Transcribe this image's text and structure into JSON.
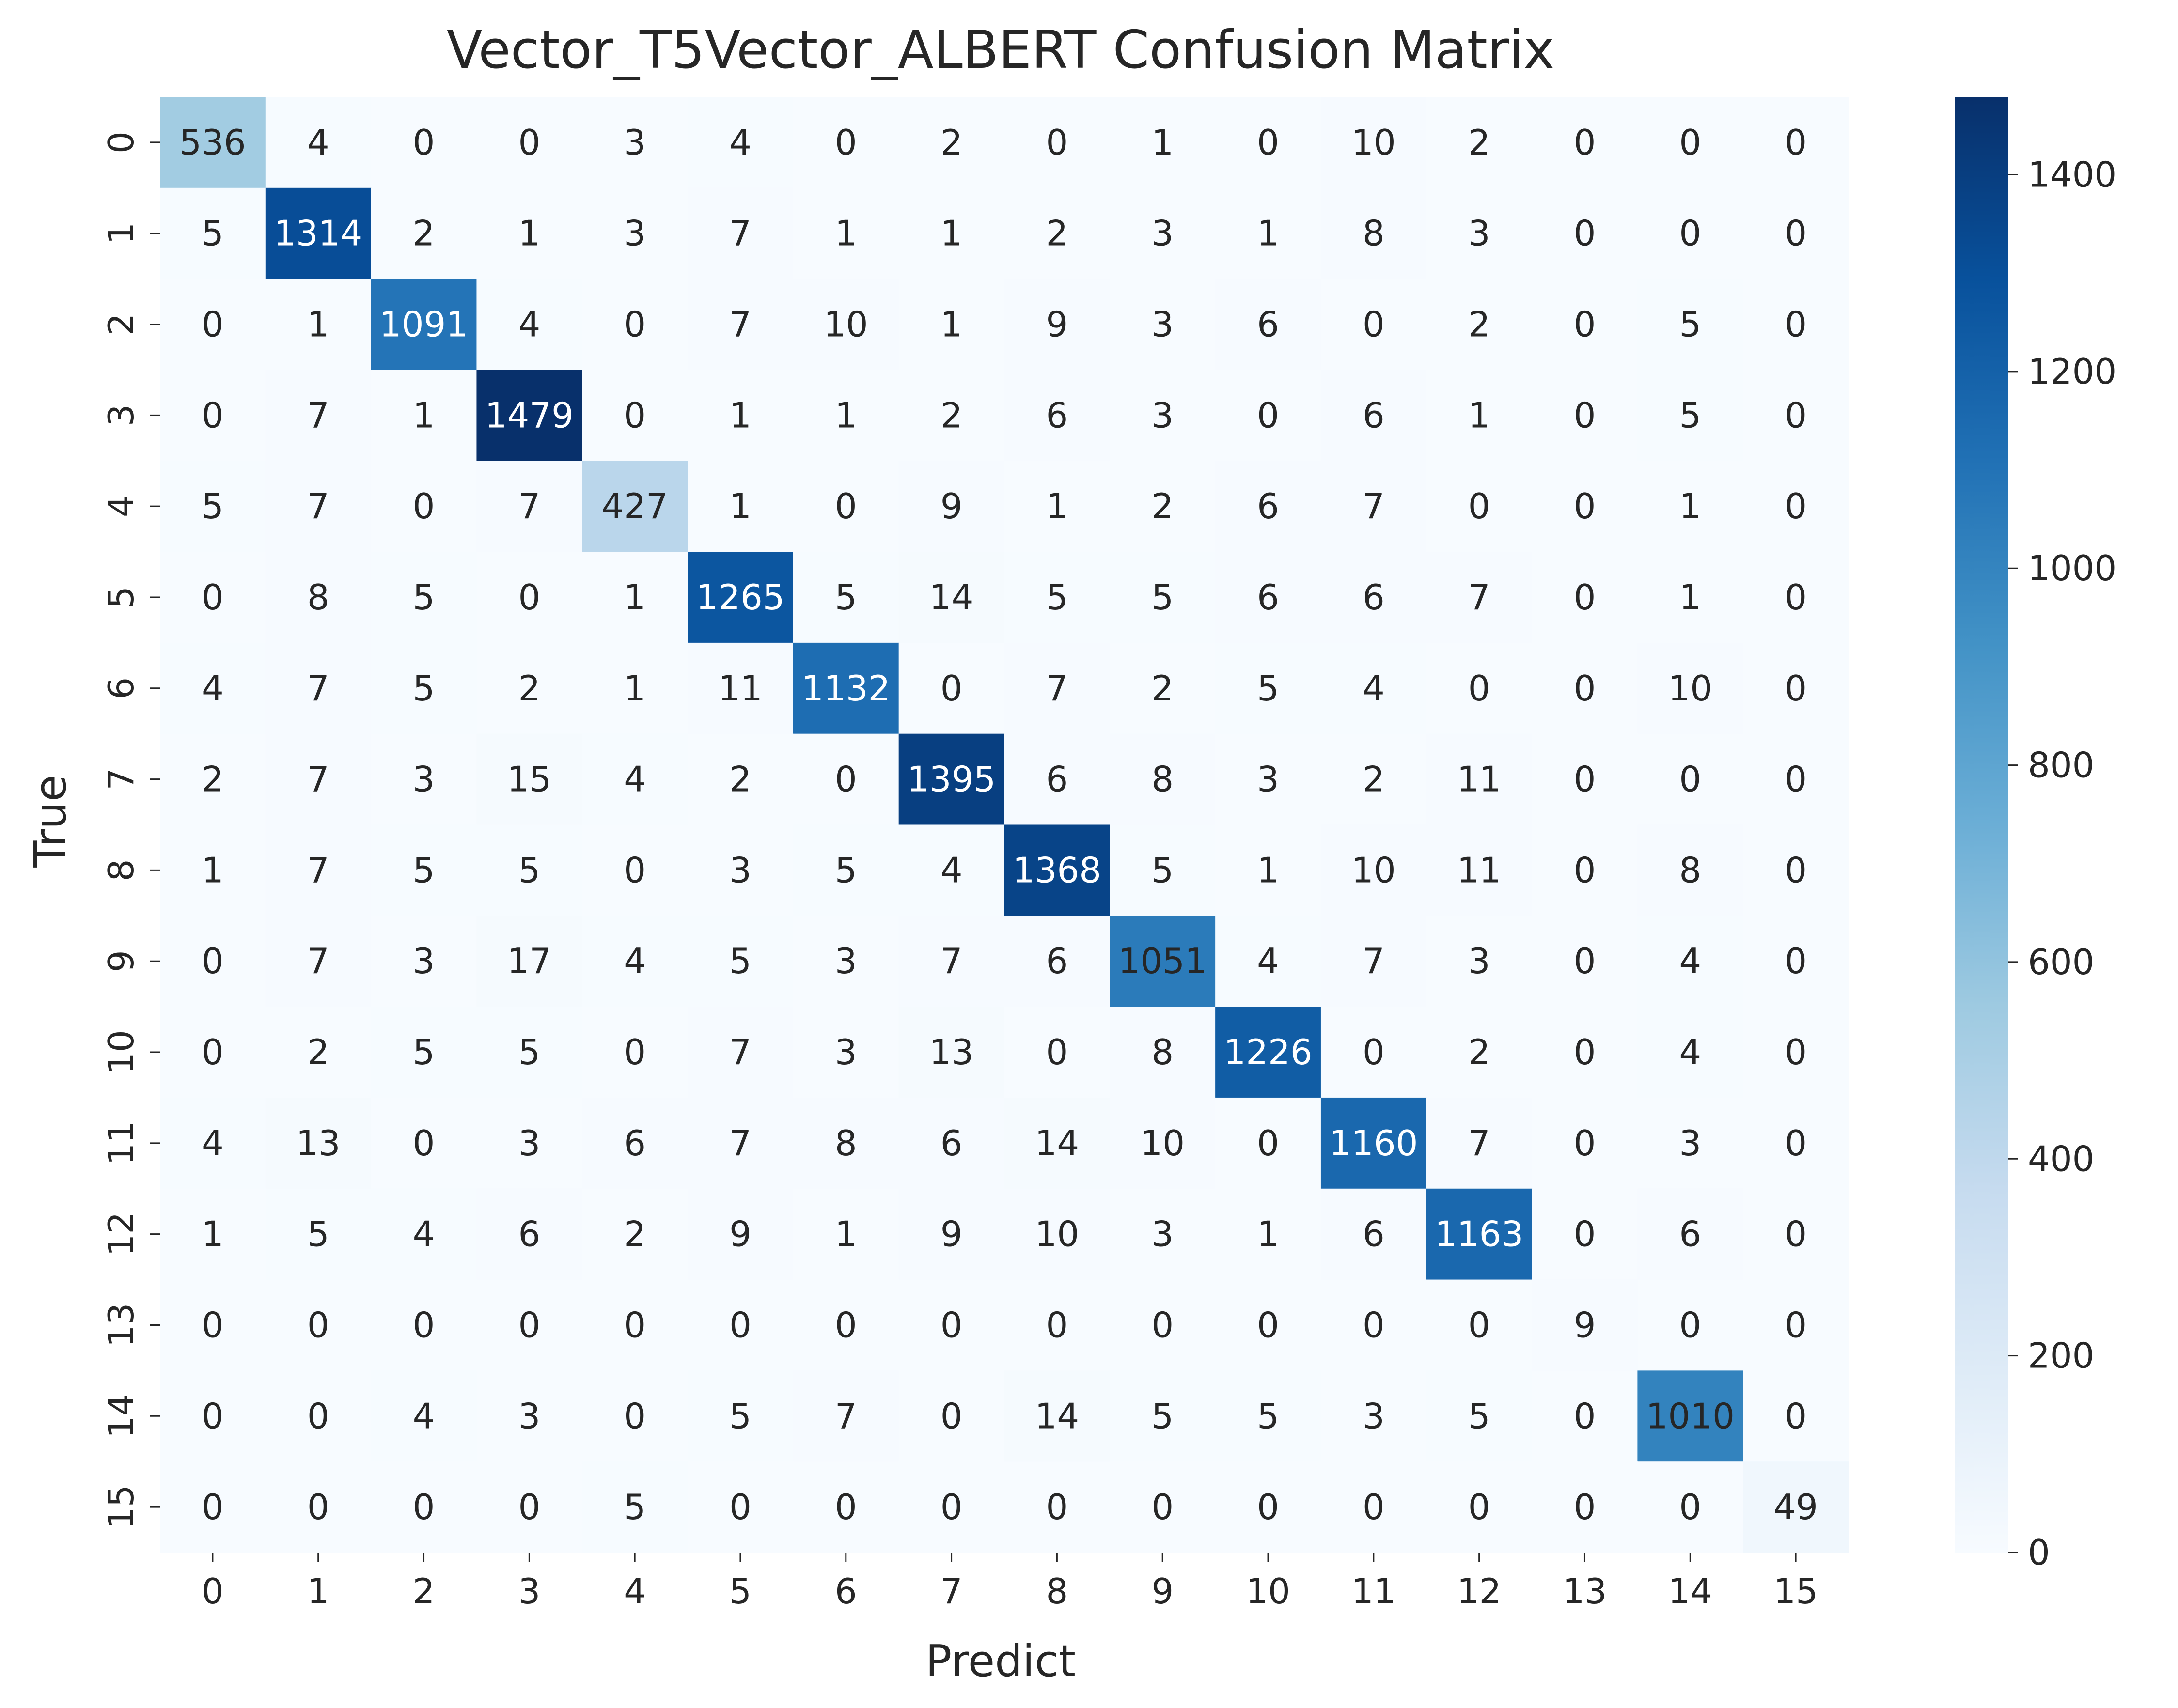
{
  "chart_data": {
    "type": "heatmap",
    "title": "Vector_T5Vector_ALBERT Confusion Matrix",
    "xlabel": "Predict",
    "ylabel": "True",
    "x_categories": [
      "0",
      "1",
      "2",
      "3",
      "4",
      "5",
      "6",
      "7",
      "8",
      "9",
      "10",
      "11",
      "12",
      "13",
      "14",
      "15"
    ],
    "y_categories": [
      "0",
      "1",
      "2",
      "3",
      "4",
      "5",
      "6",
      "7",
      "8",
      "9",
      "10",
      "11",
      "12",
      "13",
      "14",
      "15"
    ],
    "values": [
      [
        536,
        4,
        0,
        0,
        3,
        4,
        0,
        2,
        0,
        1,
        0,
        10,
        2,
        0,
        0,
        0
      ],
      [
        5,
        1314,
        2,
        1,
        3,
        7,
        1,
        1,
        2,
        3,
        1,
        8,
        3,
        0,
        0,
        0
      ],
      [
        0,
        1,
        1091,
        4,
        0,
        7,
        10,
        1,
        9,
        3,
        6,
        0,
        2,
        0,
        5,
        0
      ],
      [
        0,
        7,
        1,
        1479,
        0,
        1,
        1,
        2,
        6,
        3,
        0,
        6,
        1,
        0,
        5,
        0
      ],
      [
        5,
        7,
        0,
        7,
        427,
        1,
        0,
        9,
        1,
        2,
        6,
        7,
        0,
        0,
        1,
        0
      ],
      [
        0,
        8,
        5,
        0,
        1,
        1265,
        5,
        14,
        5,
        5,
        6,
        6,
        7,
        0,
        1,
        0
      ],
      [
        4,
        7,
        5,
        2,
        1,
        11,
        1132,
        0,
        7,
        2,
        5,
        4,
        0,
        0,
        10,
        0
      ],
      [
        2,
        7,
        3,
        15,
        4,
        2,
        0,
        1395,
        6,
        8,
        3,
        2,
        11,
        0,
        0,
        0
      ],
      [
        1,
        7,
        5,
        5,
        0,
        3,
        5,
        4,
        1368,
        5,
        1,
        10,
        11,
        0,
        8,
        0
      ],
      [
        0,
        7,
        3,
        17,
        4,
        5,
        3,
        7,
        6,
        1051,
        4,
        7,
        3,
        0,
        4,
        0
      ],
      [
        0,
        2,
        5,
        5,
        0,
        7,
        3,
        13,
        0,
        8,
        1226,
        0,
        2,
        0,
        4,
        0
      ],
      [
        4,
        13,
        0,
        3,
        6,
        7,
        8,
        6,
        14,
        10,
        0,
        1160,
        7,
        0,
        3,
        0
      ],
      [
        1,
        5,
        4,
        6,
        2,
        9,
        1,
        9,
        10,
        3,
        1,
        6,
        1163,
        0,
        6,
        0
      ],
      [
        0,
        0,
        0,
        0,
        0,
        0,
        0,
        0,
        0,
        0,
        0,
        0,
        0,
        9,
        0,
        0
      ],
      [
        0,
        0,
        4,
        3,
        0,
        5,
        7,
        0,
        14,
        5,
        5,
        3,
        5,
        0,
        1010,
        0
      ],
      [
        0,
        0,
        0,
        0,
        5,
        0,
        0,
        0,
        0,
        0,
        0,
        0,
        0,
        0,
        0,
        49
      ]
    ],
    "colorbar": {
      "min": 0,
      "max": 1479,
      "ticks": [
        0,
        200,
        400,
        600,
        800,
        1000,
        1200,
        1400
      ]
    },
    "colormap": "Blues",
    "grid": false
  }
}
